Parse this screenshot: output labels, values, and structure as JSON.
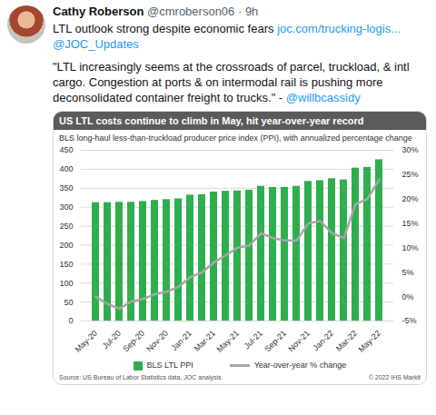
{
  "tweet": {
    "name": "Cathy Roberson",
    "meta": "@cmroberson06 · 9h",
    "text": "LTL outlook strong despite economic fears",
    "link": "joc.com/trucking-logis...",
    "mention": "@JOC_Updates",
    "quote": "\"LTL increasingly seems at the crossroads of parcel, truckload, & intl cargo. Congestion at ports & on intermodal rail is pushing more deconsolidated container freight to trucks.\" -",
    "quote_mention": "@willbcassidy"
  },
  "chart_data": {
    "type": "bar",
    "title": "US LTL costs continue to climb in May, hit year-over-year record",
    "subtitle": "BLS long-haul less-than-truckload producer price index (PPI), with annualized percentage change",
    "categories": [
      "May-20",
      null,
      "Jul-20",
      null,
      "Sep-20",
      null,
      "Nov-20",
      null,
      "Jan-21",
      null,
      "Mar-21",
      null,
      "May-21",
      null,
      "Jul-21",
      null,
      "Sep-21",
      null,
      "Nov-21",
      null,
      "Jan-22",
      null,
      "Mar-22",
      null,
      "May-22"
    ],
    "series": [
      {
        "name": "BLS LTL PPI",
        "type": "bar",
        "color": "#2fae4e",
        "values": [
          312,
          312,
          313,
          313,
          315,
          318,
          320,
          322,
          332,
          333,
          340,
          342,
          343,
          345,
          355,
          352,
          352,
          355,
          368,
          370,
          375,
          372,
          403,
          405,
          425
        ]
      },
      {
        "name": "Year-over-year % change",
        "type": "line",
        "color": "#a6a6a6",
        "axis": "y2",
        "values": [
          0,
          -1.5,
          -2.5,
          -1,
          -0.5,
          0.5,
          1,
          2,
          4,
          5,
          7,
          8.5,
          10,
          10.5,
          13,
          12,
          11.5,
          11.5,
          15,
          15.5,
          13,
          12,
          19,
          20,
          24
        ]
      }
    ],
    "ylim": [
      0,
      450
    ],
    "yticks": [
      0,
      50,
      100,
      150,
      200,
      250,
      300,
      350,
      400,
      450
    ],
    "y2lim": [
      -5,
      30
    ],
    "y2ticks": [
      {
        "value": -5,
        "label": "-5%"
      },
      {
        "value": 0,
        "label": "0%"
      },
      {
        "value": 5,
        "label": "5%"
      },
      {
        "value": 10,
        "label": "10%"
      },
      {
        "value": 15,
        "label": "15%"
      },
      {
        "value": 20,
        "label": "20%"
      },
      {
        "value": 25,
        "label": "25%"
      },
      {
        "value": 30,
        "label": "30%"
      }
    ],
    "grid": true,
    "legend": "bottom",
    "source": "Source: US Bureau of Labor Statistics data, JOC analysis",
    "credit": "© 2022 IHS Markit"
  }
}
